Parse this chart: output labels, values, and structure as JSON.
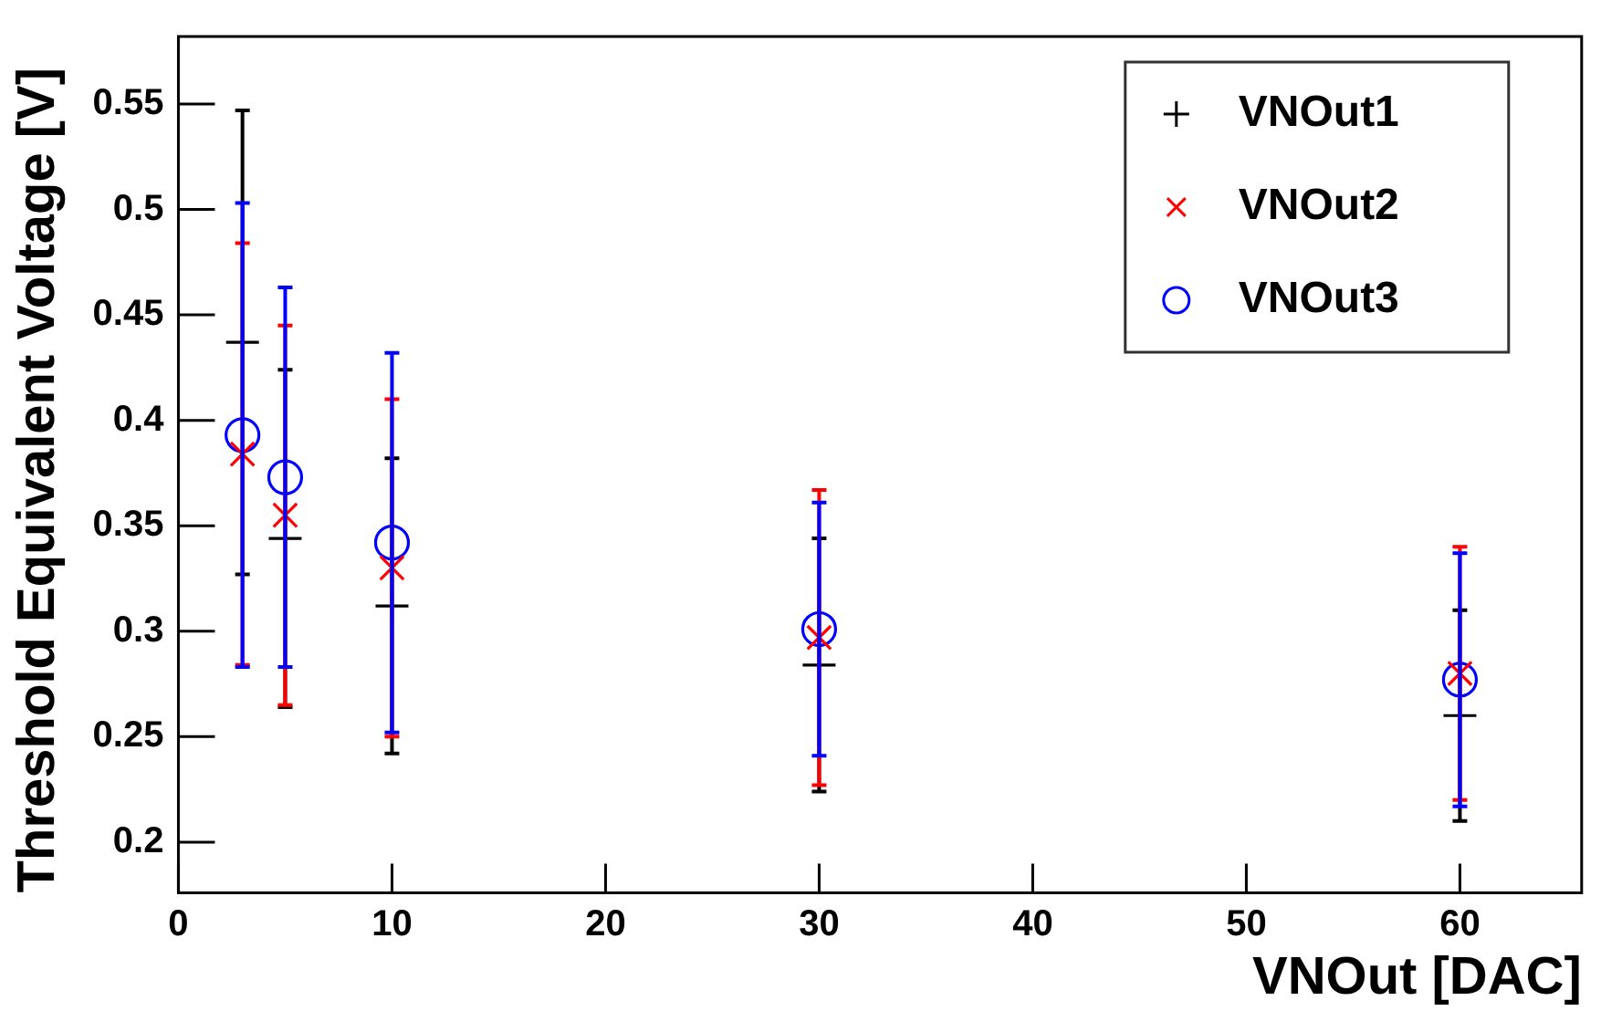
{
  "chart_data": {
    "type": "scatter",
    "xlabel": "VNOut [DAC]",
    "ylabel": "Threshold Equivalent Voltage [V]",
    "x": [
      3,
      5,
      10,
      30,
      60
    ],
    "series": [
      {
        "name": "VNOut1",
        "color": "#000000",
        "marker": "cross",
        "values": [
          0.437,
          0.344,
          0.312,
          0.284,
          0.26
        ],
        "errors": [
          0.11,
          0.08,
          0.07,
          0.06,
          0.05
        ]
      },
      {
        "name": "VNOut2",
        "color": "#ff0000",
        "marker": "x",
        "values": [
          0.384,
          0.355,
          0.33,
          0.297,
          0.28
        ],
        "errors": [
          0.1,
          0.09,
          0.08,
          0.07,
          0.06
        ]
      },
      {
        "name": "VNOut3",
        "color": "#0000ff",
        "marker": "circle",
        "values": [
          0.393,
          0.373,
          0.342,
          0.301,
          0.277
        ],
        "errors": [
          0.11,
          0.09,
          0.09,
          0.06,
          0.06
        ]
      }
    ],
    "xlim": [
      0,
      65.7
    ],
    "ylim": [
      0.176,
      0.582
    ],
    "xticks": [
      0,
      10,
      20,
      30,
      40,
      50,
      60
    ],
    "yticks": [
      0.2,
      0.25,
      0.3,
      0.35,
      0.4,
      0.45,
      0.5,
      0.55
    ],
    "grid": false,
    "legend": "top right"
  }
}
